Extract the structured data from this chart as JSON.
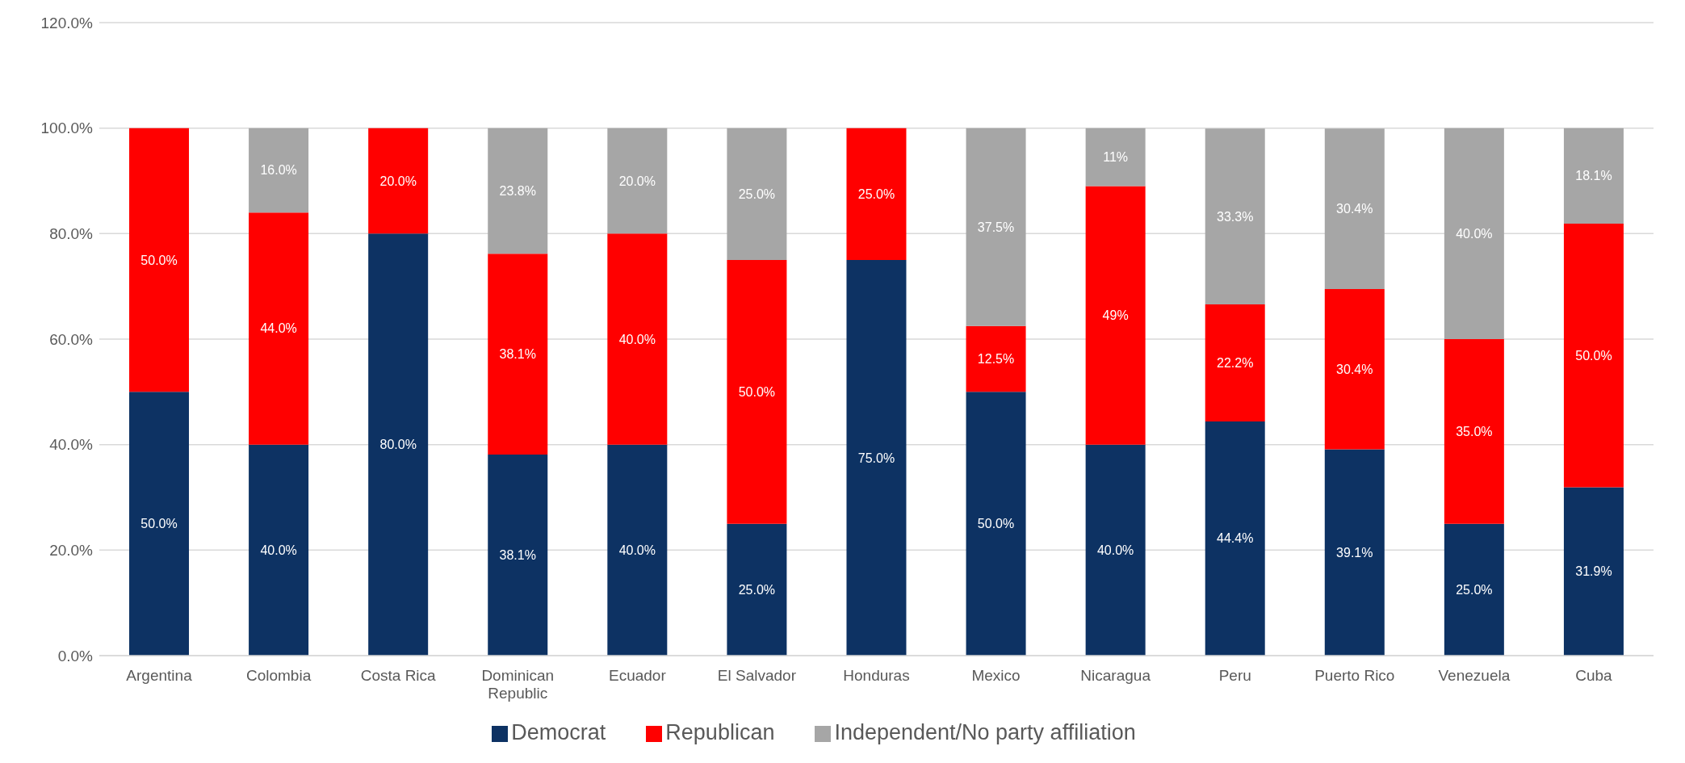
{
  "chart_data": {
    "type": "bar",
    "stacked": true,
    "categories": [
      "Argentina",
      "Colombia",
      "Costa Rica",
      "Dominican Republic",
      "Ecuador",
      "El Salvador",
      "Honduras",
      "Mexico",
      "Nicaragua",
      "Peru",
      "Puerto Rico",
      "Venezuela",
      "Cuba"
    ],
    "series": [
      {
        "name": "Democrat",
        "color": "#0d3263",
        "values": [
          50.0,
          40.0,
          80.0,
          38.1,
          40.0,
          25.0,
          75.0,
          50.0,
          40.0,
          44.4,
          39.1,
          25.0,
          31.9
        ],
        "value_labels": [
          "50.0%",
          "40.0%",
          "80.0%",
          "38.1%",
          "40.0%",
          "25.0%",
          "75.0%",
          "50.0%",
          "40.0%",
          "44.4%",
          "39.1%",
          "25.0%",
          "31.9%"
        ]
      },
      {
        "name": "Republican",
        "color": "#ff0000",
        "values": [
          50.0,
          44.0,
          20.0,
          38.1,
          40.0,
          50.0,
          25.0,
          12.5,
          49,
          22.2,
          30.4,
          35.0,
          50.0
        ],
        "value_labels": [
          "50.0%",
          "44.0%",
          "20.0%",
          "38.1%",
          "40.0%",
          "50.0%",
          "25.0%",
          "12.5%",
          "49%",
          "22.2%",
          "30.4%",
          "35.0%",
          "50.0%"
        ]
      },
      {
        "name": "Independent/No party affiliation",
        "color": "#a6a6a6",
        "values": [
          0,
          16.0,
          0,
          23.8,
          20.0,
          25.0,
          0,
          37.5,
          11,
          33.3,
          30.4,
          40.0,
          18.1
        ],
        "value_labels": [
          null,
          "16.0%",
          null,
          "23.8%",
          "20.0%",
          "25.0%",
          null,
          "37.5%",
          "11%",
          "33.3%",
          "30.4%",
          "40.0%",
          "18.1%"
        ]
      }
    ],
    "ylim": [
      0,
      120
    ],
    "yticks": [
      {
        "value": 0,
        "label": "0.0%"
      },
      {
        "value": 20,
        "label": "20.0%"
      },
      {
        "value": 40,
        "label": "40.0%"
      },
      {
        "value": 60,
        "label": "60.0%"
      },
      {
        "value": 80,
        "label": "80.0%"
      },
      {
        "value": 100,
        "label": "100.0%"
      },
      {
        "value": 120,
        "label": "120.0%"
      }
    ],
    "grid": "y",
    "legend": "bottom"
  }
}
